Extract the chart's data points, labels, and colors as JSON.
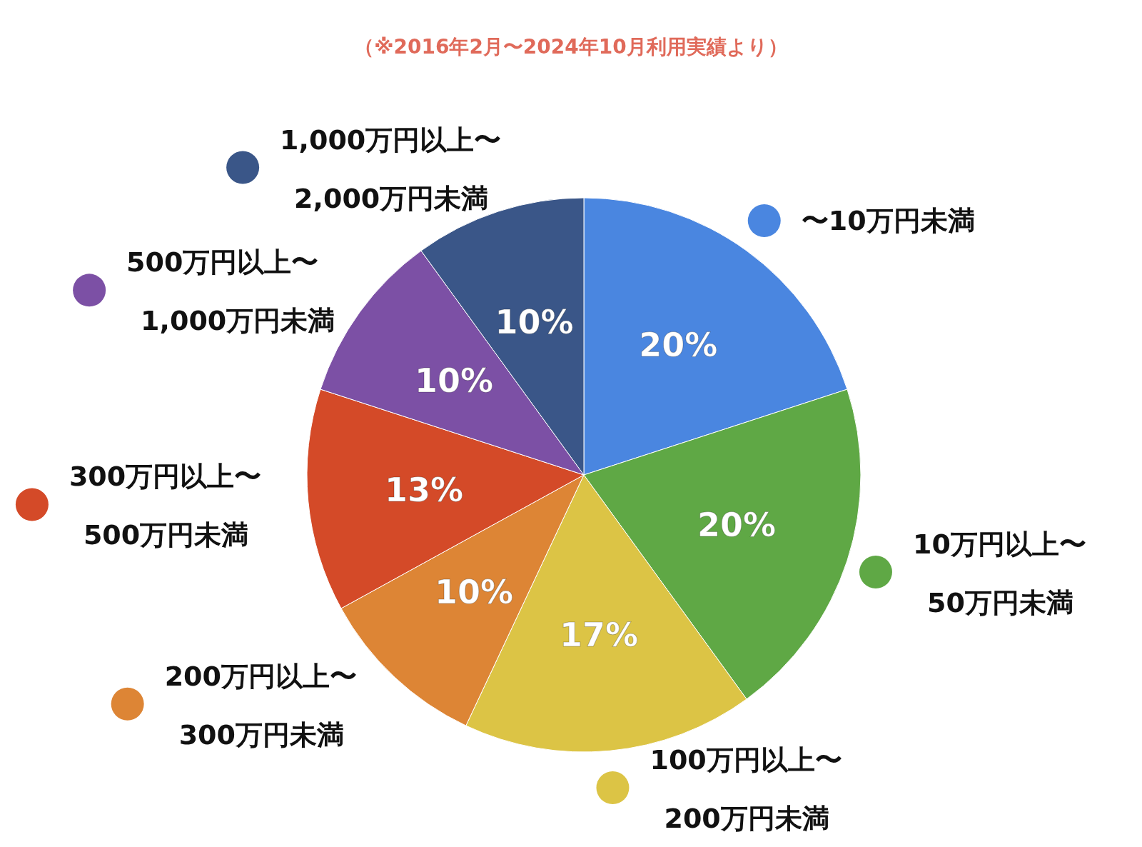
{
  "chart_data": {
    "type": "pie",
    "title": "（※2016年2月〜2024年10月利用実績より）",
    "categories": [
      "〜10万円未満",
      "10万円以上〜50万円未満",
      "100万円以上〜200万円未満",
      "200万円以上〜300万円未満",
      "300万円以上〜500万円未満",
      "500万円以上〜1,000万円未満",
      "1,000万円以上〜2,000万円未満"
    ],
    "values": [
      20,
      20,
      17,
      10,
      13,
      10,
      10
    ],
    "value_labels": [
      "20%",
      "20%",
      "17%",
      "10%",
      "13%",
      "10%",
      "10%"
    ],
    "legend": "bottom left",
    "colors": [
      "#4a86e0",
      "#5fa845",
      "#dcc445",
      "#dd8535",
      "#d44a28",
      "#7c50a5",
      "#3a5688"
    ]
  }
}
